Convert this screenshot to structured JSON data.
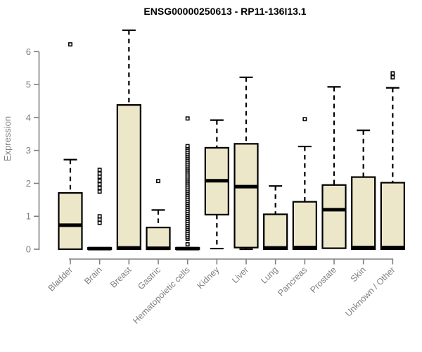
{
  "chart_data": {
    "type": "boxplot",
    "title": "ENSG00000250613 - RP11-136I13.1",
    "ylabel": "Expression",
    "ylim": [
      0,
      6.65
    ],
    "yticks": [
      0,
      1,
      2,
      3,
      4,
      5,
      6
    ],
    "grid": false,
    "legend": null,
    "colors": {
      "box_fill": "#EDE7C9",
      "box_stroke": "#000000",
      "axis_color": "#808080",
      "title_color": "#000000"
    },
    "categories": [
      "Bladder",
      "Brain",
      "Breast",
      "Gastric",
      "Hematopoietic cells",
      "Kidney",
      "Liver",
      "Lung",
      "Pancreas",
      "Prostate",
      "Skin",
      "Unknown / Other"
    ],
    "series": [
      {
        "name": "Bladder",
        "q1": 0,
        "median": 0.73,
        "q3": 1.71,
        "whisker_low": 0,
        "whisker_high": 2.72,
        "outliers": [
          6.22
        ]
      },
      {
        "name": "Brain",
        "q1": 0,
        "median": 0.02,
        "q3": 0.04,
        "whisker_low": 0,
        "whisker_high": 0.04,
        "outliers": [
          0.8,
          0.9,
          1.0,
          1.75,
          1.86,
          1.97,
          2.08,
          2.2,
          2.3,
          2.41
        ]
      },
      {
        "name": "Breast",
        "q1": 0,
        "median": 0.04,
        "q3": 4.38,
        "whisker_low": 0,
        "whisker_high": 6.65,
        "outliers": []
      },
      {
        "name": "Gastric",
        "q1": 0,
        "median": 0.03,
        "q3": 0.66,
        "whisker_low": 0,
        "whisker_high": 1.19,
        "outliers": [
          2.07
        ]
      },
      {
        "name": "Hematopoietic cells",
        "q1": 0,
        "median": 0.02,
        "q3": 0.04,
        "whisker_low": 0,
        "whisker_high": 0.04,
        "outliers": [
          0.15,
          0.32,
          0.38,
          0.44,
          0.5,
          0.56,
          0.62,
          0.68,
          0.74,
          0.8,
          0.86,
          0.92,
          0.98,
          1.04,
          1.1,
          1.16,
          1.22,
          1.28,
          1.34,
          1.4,
          1.46,
          1.52,
          1.58,
          1.64,
          1.7,
          1.76,
          1.82,
          1.88,
          1.94,
          2.0,
          2.06,
          2.12,
          2.18,
          2.24,
          2.3,
          2.36,
          2.42,
          2.48,
          2.54,
          2.6,
          2.66,
          2.72,
          2.78,
          2.84,
          2.9,
          2.96,
          3.02,
          3.08,
          3.13,
          3.97
        ]
      },
      {
        "name": "Kidney",
        "q1": 1.05,
        "median": 2.08,
        "q3": 3.08,
        "whisker_low": 0.02,
        "whisker_high": 3.92,
        "outliers": []
      },
      {
        "name": "Liver",
        "q1": 0.05,
        "median": 1.9,
        "q3": 3.2,
        "whisker_low": 0,
        "whisker_high": 5.22,
        "outliers": []
      },
      {
        "name": "Lung",
        "q1": 0,
        "median": 0.04,
        "q3": 1.06,
        "whisker_low": 0,
        "whisker_high": 1.92,
        "outliers": []
      },
      {
        "name": "Pancreas",
        "q1": 0,
        "median": 0.05,
        "q3": 1.44,
        "whisker_low": 0,
        "whisker_high": 3.12,
        "outliers": [
          3.95
        ]
      },
      {
        "name": "Prostate",
        "q1": 0.03,
        "median": 1.2,
        "q3": 1.95,
        "whisker_low": 0.03,
        "whisker_high": 4.93,
        "outliers": []
      },
      {
        "name": "Skin",
        "q1": 0,
        "median": 0.05,
        "q3": 2.19,
        "whisker_low": 0,
        "whisker_high": 3.61,
        "outliers": []
      },
      {
        "name": "Unknown / Other",
        "q1": 0,
        "median": 0.05,
        "q3": 2.02,
        "whisker_low": 0,
        "whisker_high": 4.9,
        "outliers": [
          5.22,
          5.34
        ]
      }
    ]
  }
}
